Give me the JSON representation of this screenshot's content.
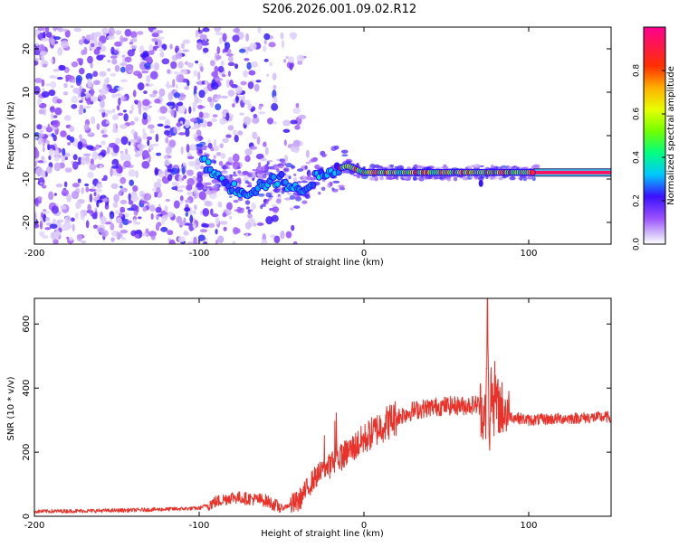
{
  "title": "S206.2026.001.09.02.R12",
  "chart_data": [
    {
      "type": "heatmap",
      "xlabel": "Height of straight line (km)",
      "ylabel": "Frequency (Hz)",
      "xlim": [
        -200,
        150
      ],
      "ylim": [
        -25,
        25
      ],
      "x_ticks": [
        -200,
        -100,
        0,
        100
      ],
      "y_ticks": [
        -20,
        -10,
        0,
        10,
        20
      ],
      "colorbar": {
        "label": "Normalized spectral amplitude",
        "range": [
          0,
          1
        ],
        "ticks": [
          0.0,
          0.2,
          0.4,
          0.6,
          0.8
        ]
      },
      "ridge": {
        "name": "peak frequency track",
        "x": [
          -100,
          -90,
          -80,
          -70,
          -60,
          -50,
          -40,
          -30,
          -20,
          -10,
          0,
          20,
          40,
          60,
          80,
          100,
          150
        ],
        "y": [
          -5,
          -9,
          -12,
          -13,
          -11,
          -10,
          -13,
          -10,
          -8,
          -7,
          -8.5,
          -8.5,
          -8.5,
          -8.5,
          -8.5,
          -8.5,
          -8.5
        ]
      }
    },
    {
      "type": "line",
      "series": [
        {
          "name": "SNR",
          "color": "#e8322a",
          "x": [
            -200,
            -150,
            -120,
            -100,
            -90,
            -80,
            -70,
            -60,
            -50,
            -40,
            -30,
            -20,
            -10,
            0,
            10,
            20,
            30,
            40,
            50,
            60,
            70,
            74,
            75,
            76,
            77,
            80,
            90,
            100,
            120,
            150
          ],
          "y": [
            15,
            18,
            22,
            25,
            45,
            60,
            55,
            50,
            25,
            45,
            120,
            160,
            200,
            240,
            280,
            310,
            330,
            340,
            345,
            345,
            350,
            300,
            680,
            150,
            400,
            350,
            310,
            300,
            305,
            310
          ]
        }
      ],
      "xlabel": "Height of straight line (km)",
      "ylabel": "SNR (10 * v/v)",
      "xlim": [
        -200,
        150
      ],
      "ylim": [
        0,
        680
      ],
      "x_ticks": [
        -200,
        -100,
        0,
        100
      ],
      "y_ticks": [
        0,
        200,
        400,
        600
      ]
    }
  ]
}
